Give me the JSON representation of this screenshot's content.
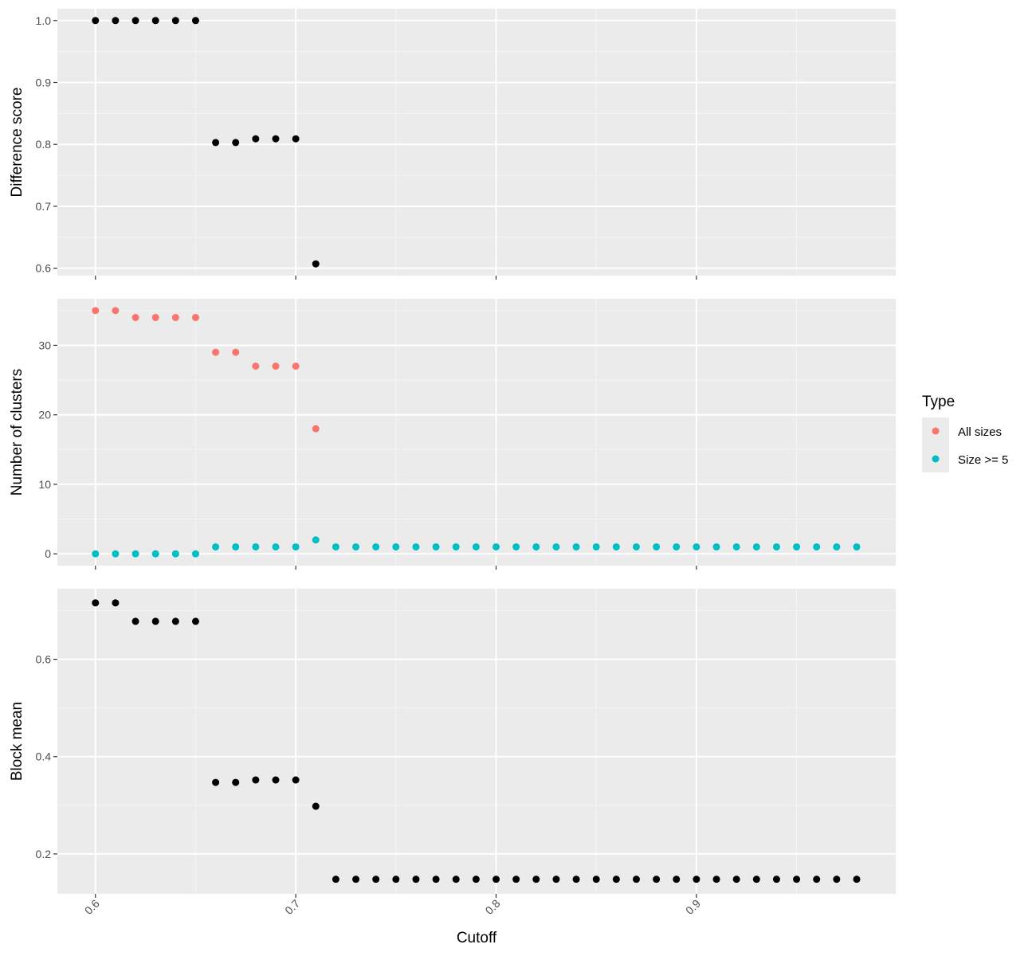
{
  "chart_data": {
    "type": "scatter",
    "xlabel": "Cutoff",
    "x_ticks": [
      0.6,
      0.7,
      0.8,
      0.9
    ],
    "x_tick_labels": [
      "0.6",
      "0.7",
      "0.8",
      "0.9"
    ],
    "xlim": [
      0.581,
      0.9995
    ],
    "grid": true,
    "legend": {
      "title": "Type",
      "placement": "right",
      "entries": [
        {
          "label": "All sizes",
          "color": "#F8766D"
        },
        {
          "label": "Size >= 5",
          "color": "#00BFC4"
        }
      ]
    },
    "panels": [
      {
        "ylabel": "Difference score",
        "ylim": [
          0.588,
          1.019
        ],
        "y_ticks": [
          0.6,
          0.7,
          0.8,
          0.9,
          1.0
        ],
        "y_tick_labels": [
          "0.6",
          "0.7",
          "0.8",
          "0.9",
          "1.0"
        ],
        "series": [
          {
            "color": "#000000",
            "x": [
              0.6,
              0.61,
              0.62,
              0.63,
              0.64,
              0.65,
              0.66,
              0.67,
              0.68,
              0.69,
              0.7,
              0.71
            ],
            "y": [
              1.0,
              1.0,
              1.0,
              1.0,
              1.0,
              1.0,
              0.803,
              0.803,
              0.809,
              0.809,
              0.809,
              0.607
            ]
          }
        ]
      },
      {
        "ylabel": "Number of clusters",
        "ylim": [
          -1.7,
          36.7
        ],
        "y_ticks": [
          0,
          10,
          20,
          30
        ],
        "y_tick_labels": [
          "0",
          "10",
          "20",
          "30"
        ],
        "series": [
          {
            "name": "All sizes",
            "color": "#F8766D",
            "x": [
              0.6,
              0.61,
              0.62,
              0.63,
              0.64,
              0.65,
              0.66,
              0.67,
              0.68,
              0.69,
              0.7,
              0.71
            ],
            "y": [
              35,
              35,
              34,
              34,
              34,
              34,
              29,
              29,
              27,
              27,
              27,
              18
            ]
          },
          {
            "name": "Size >= 5",
            "color": "#00BFC4",
            "x": [
              0.6,
              0.61,
              0.62,
              0.63,
              0.64,
              0.65,
              0.66,
              0.67,
              0.68,
              0.69,
              0.7,
              0.71,
              0.72,
              0.73,
              0.74,
              0.75,
              0.76,
              0.77,
              0.78,
              0.79,
              0.8,
              0.81,
              0.82,
              0.83,
              0.84,
              0.85,
              0.86,
              0.87,
              0.88,
              0.89,
              0.9,
              0.91,
              0.92,
              0.93,
              0.94,
              0.95,
              0.96,
              0.97,
              0.98
            ],
            "y": [
              0,
              0,
              0,
              0,
              0,
              0,
              1,
              1,
              1,
              1,
              1,
              2,
              1,
              1,
              1,
              1,
              1,
              1,
              1,
              1,
              1,
              1,
              1,
              1,
              1,
              1,
              1,
              1,
              1,
              1,
              1,
              1,
              1,
              1,
              1,
              1,
              1,
              1,
              1
            ]
          }
        ]
      },
      {
        "ylabel": "Block mean",
        "ylim": [
          0.118,
          0.745
        ],
        "y_ticks": [
          0.2,
          0.4,
          0.6
        ],
        "y_tick_labels": [
          "0.2",
          "0.4",
          "0.6"
        ],
        "series": [
          {
            "color": "#000000",
            "x": [
              0.6,
              0.61,
              0.62,
              0.63,
              0.64,
              0.65,
              0.66,
              0.67,
              0.68,
              0.69,
              0.7,
              0.71,
              0.72,
              0.73,
              0.74,
              0.75,
              0.76,
              0.77,
              0.78,
              0.79,
              0.8,
              0.81,
              0.82,
              0.83,
              0.84,
              0.85,
              0.86,
              0.87,
              0.88,
              0.89,
              0.9,
              0.91,
              0.92,
              0.93,
              0.94,
              0.95,
              0.96,
              0.97,
              0.98
            ],
            "y": [
              0.716,
              0.716,
              0.678,
              0.678,
              0.678,
              0.678,
              0.347,
              0.347,
              0.352,
              0.352,
              0.352,
              0.298,
              0.148,
              0.148,
              0.148,
              0.148,
              0.148,
              0.148,
              0.148,
              0.148,
              0.148,
              0.148,
              0.148,
              0.148,
              0.148,
              0.148,
              0.148,
              0.148,
              0.148,
              0.148,
              0.148,
              0.148,
              0.148,
              0.148,
              0.148,
              0.148,
              0.148,
              0.148,
              0.148
            ]
          }
        ]
      }
    ]
  }
}
